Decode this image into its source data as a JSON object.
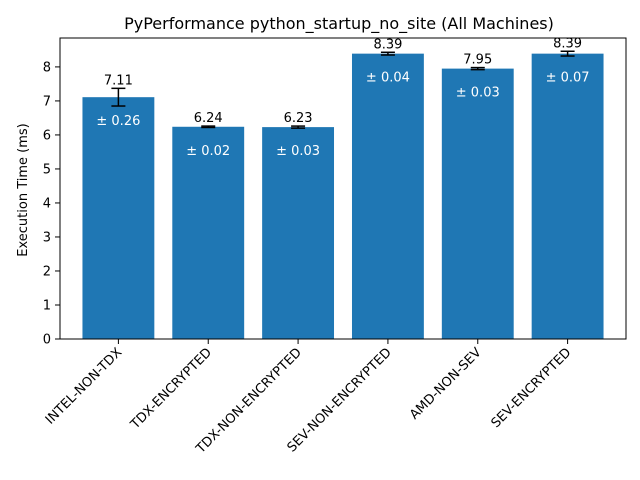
{
  "chart_data": {
    "type": "bar",
    "title": "PyPerformance python_startup_no_site (All Machines)",
    "xlabel": "",
    "ylabel": "Execution Time (ms)",
    "ylim": [
      0,
      8.85
    ],
    "yticks": [
      0,
      1,
      2,
      3,
      4,
      5,
      6,
      7,
      8
    ],
    "grid": false,
    "bar_color": "#1f77b4",
    "categories": [
      "INTEL-NON-TDX",
      "TDX-ENCRYPTED",
      "TDX-NON-ENCRYPTED",
      "SEV-NON-ENCRYPTED",
      "AMD-NON-SEV",
      "SEV-ENCRYPTED"
    ],
    "values": [
      7.11,
      6.24,
      6.23,
      8.39,
      7.95,
      8.39
    ],
    "errors": [
      0.26,
      0.02,
      0.03,
      0.04,
      0.03,
      0.07
    ],
    "value_labels": [
      "7.11",
      "6.24",
      "6.23",
      "8.39",
      "7.95",
      "8.39"
    ],
    "error_labels": [
      "± 0.26",
      "± 0.02",
      "± 0.03",
      "± 0.04",
      "± 0.03",
      "± 0.07"
    ]
  }
}
